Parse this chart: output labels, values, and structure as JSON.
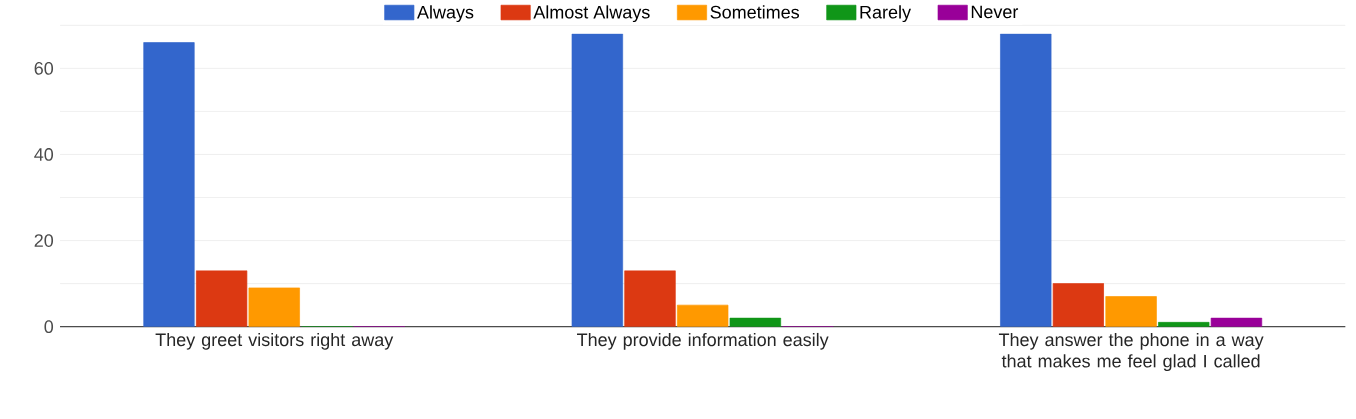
{
  "chart_data": {
    "type": "bar",
    "categories": [
      "They greet visitors right away",
      "They provide information easily",
      "They answer the phone in a way that makes me feel glad I called"
    ],
    "series": [
      {
        "name": "Always",
        "color": "#3366cc",
        "values": [
          66,
          68,
          68
        ]
      },
      {
        "name": "Almost Always",
        "color": "#dc3912",
        "values": [
          13,
          13,
          10
        ]
      },
      {
        "name": "Sometimes",
        "color": "#ff9900",
        "values": [
          9,
          5,
          7
        ]
      },
      {
        "name": "Rarely",
        "color": "#109618",
        "values": [
          0,
          2,
          1
        ]
      },
      {
        "name": "Never",
        "color": "#990099",
        "values": [
          0,
          0,
          2
        ]
      }
    ],
    "ylim": [
      0,
      70
    ],
    "yticks": [
      0,
      {
        "value": 10,
        "label": null
      },
      20,
      {
        "value": 30,
        "label": null
      },
      40,
      {
        "value": 50,
        "label": null
      },
      60,
      {
        "value": 70,
        "label": null
      }
    ],
    "grid": "y",
    "legend": "top"
  }
}
